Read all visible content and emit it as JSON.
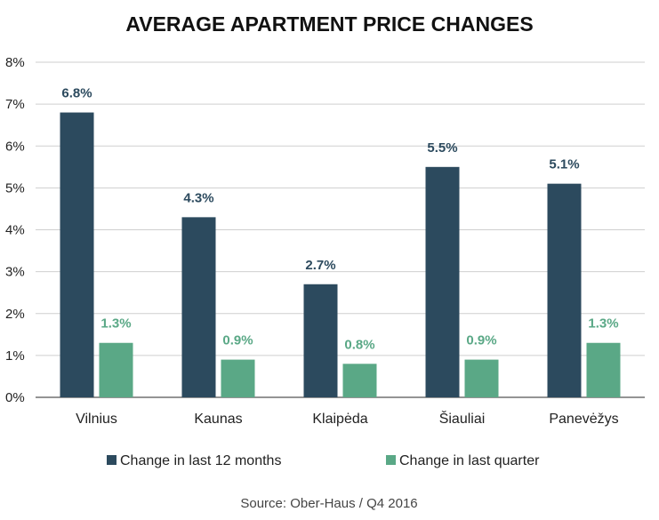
{
  "chart_data": {
    "type": "bar",
    "title": "AVERAGE APARTMENT PRICE CHANGES",
    "categories": [
      "Vilnius",
      "Kaunas",
      "Klaipėda",
      "Šiauliai",
      "Panevėžys"
    ],
    "series": [
      {
        "name": "Change in last 12 months",
        "values": [
          6.8,
          4.3,
          2.7,
          5.5,
          5.1
        ],
        "labels": [
          "6.8%",
          "4.3%",
          "2.7%",
          "5.5%",
          "5.1%"
        ],
        "color": "#2c4a5e"
      },
      {
        "name": "Change in last quarter",
        "values": [
          1.3,
          0.9,
          0.8,
          0.9,
          1.3
        ],
        "labels": [
          "1.3%",
          "0.9%",
          "0.8%",
          "0.9%",
          "1.3%"
        ],
        "color": "#5aa886"
      }
    ],
    "yticks": [
      "0%",
      "1%",
      "2%",
      "3%",
      "4%",
      "5%",
      "6%",
      "7%",
      "8%"
    ],
    "ylim": [
      0,
      8
    ],
    "grid": true,
    "legend": "bottom",
    "source": "Source: Ober-Haus / Q4 2016"
  }
}
